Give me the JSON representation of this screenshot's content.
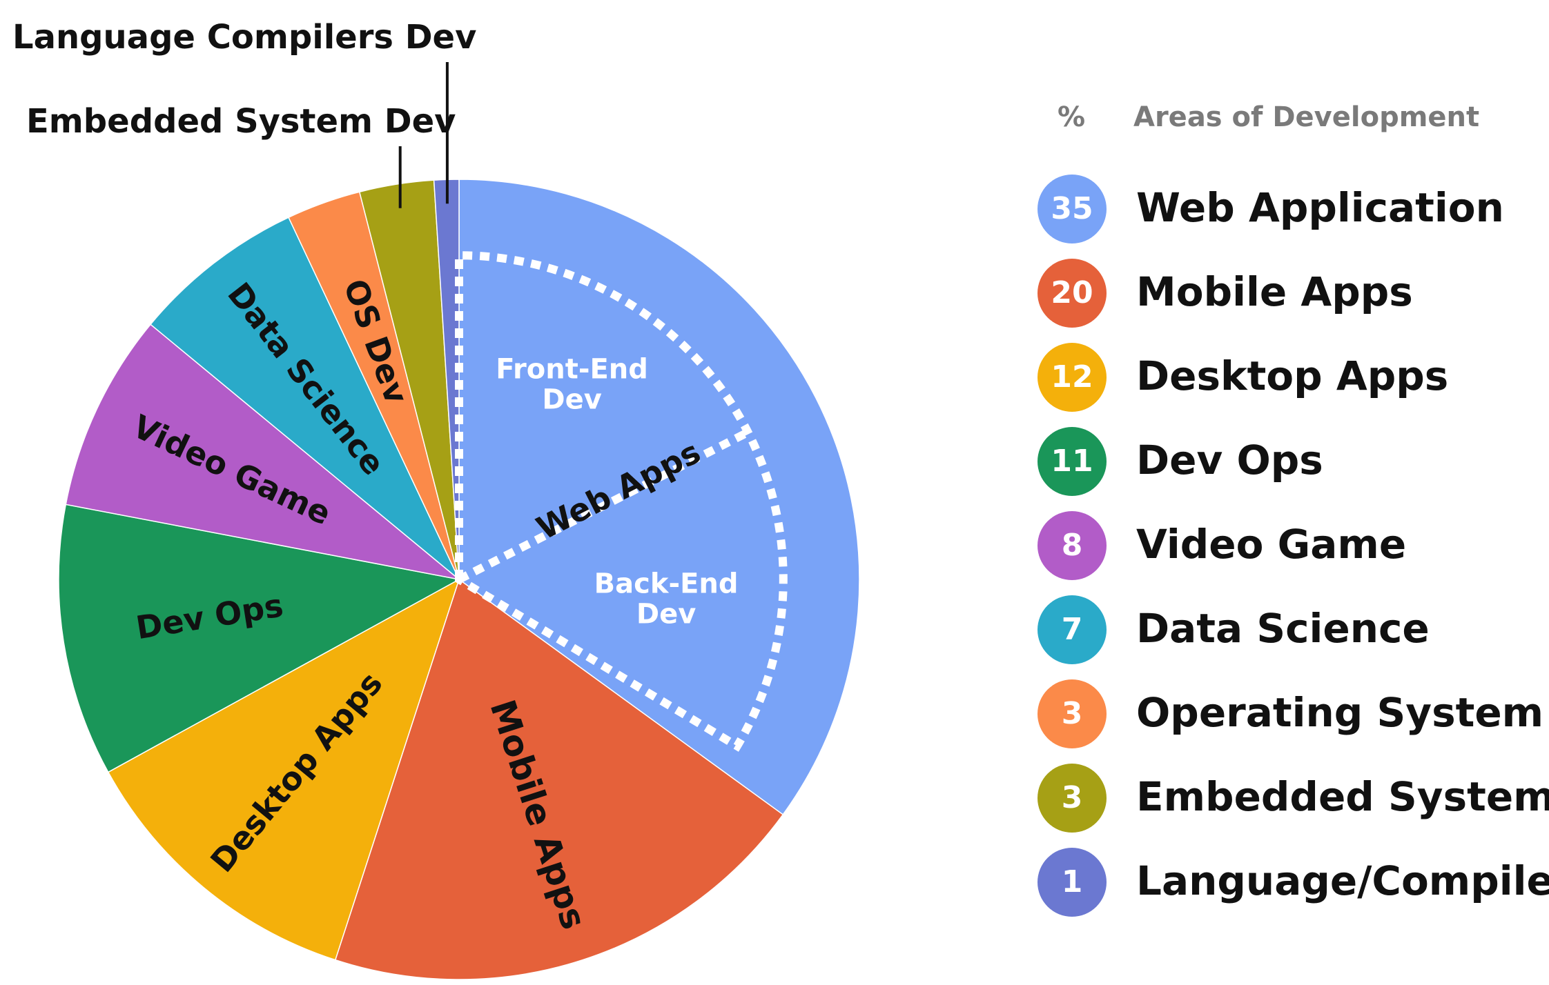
{
  "chart_data": {
    "type": "pie",
    "legend_header": {
      "percent_symbol": "%",
      "title": "Areas of Development"
    },
    "slices": [
      {
        "legend_label": "Web Application",
        "value": 35,
        "color": "#79a3f7",
        "slice_label": ""
      },
      {
        "legend_label": "Mobile Apps",
        "value": 20,
        "color": "#e5613a",
        "slice_label": "Mobile Apps"
      },
      {
        "legend_label": "Desktop Apps",
        "value": 12,
        "color": "#f4b00b",
        "slice_label": "Desktop Apps"
      },
      {
        "legend_label": "Dev Ops",
        "value": 11,
        "color": "#1a9659",
        "slice_label": "Dev Ops"
      },
      {
        "legend_label": "Video Game",
        "value": 8,
        "color": "#b25cc8",
        "slice_label": "Video Game"
      },
      {
        "legend_label": "Data Science",
        "value": 7,
        "color": "#2aaac9",
        "slice_label": "Data Science"
      },
      {
        "legend_label": "Operating System",
        "value": 3,
        "color": "#fb8a49",
        "slice_label": "OS Dev"
      },
      {
        "legend_label": "Embedded Systems",
        "value": 3,
        "color": "#a6a015",
        "slice_label": ""
      },
      {
        "legend_label": "Language/Compilers",
        "value": 1,
        "color": "#6b78d1",
        "slice_label": ""
      }
    ],
    "web_apps_breakdown": {
      "label": "Web Apps",
      "parts": [
        {
          "line1": "Front-End",
          "line2": "Dev"
        },
        {
          "line1": "Back-End",
          "line2": "Dev"
        }
      ]
    },
    "callouts": {
      "language_compilers": "Language Compilers Dev",
      "embedded_system": "Embedded System Dev"
    },
    "legend_placement": "right"
  }
}
